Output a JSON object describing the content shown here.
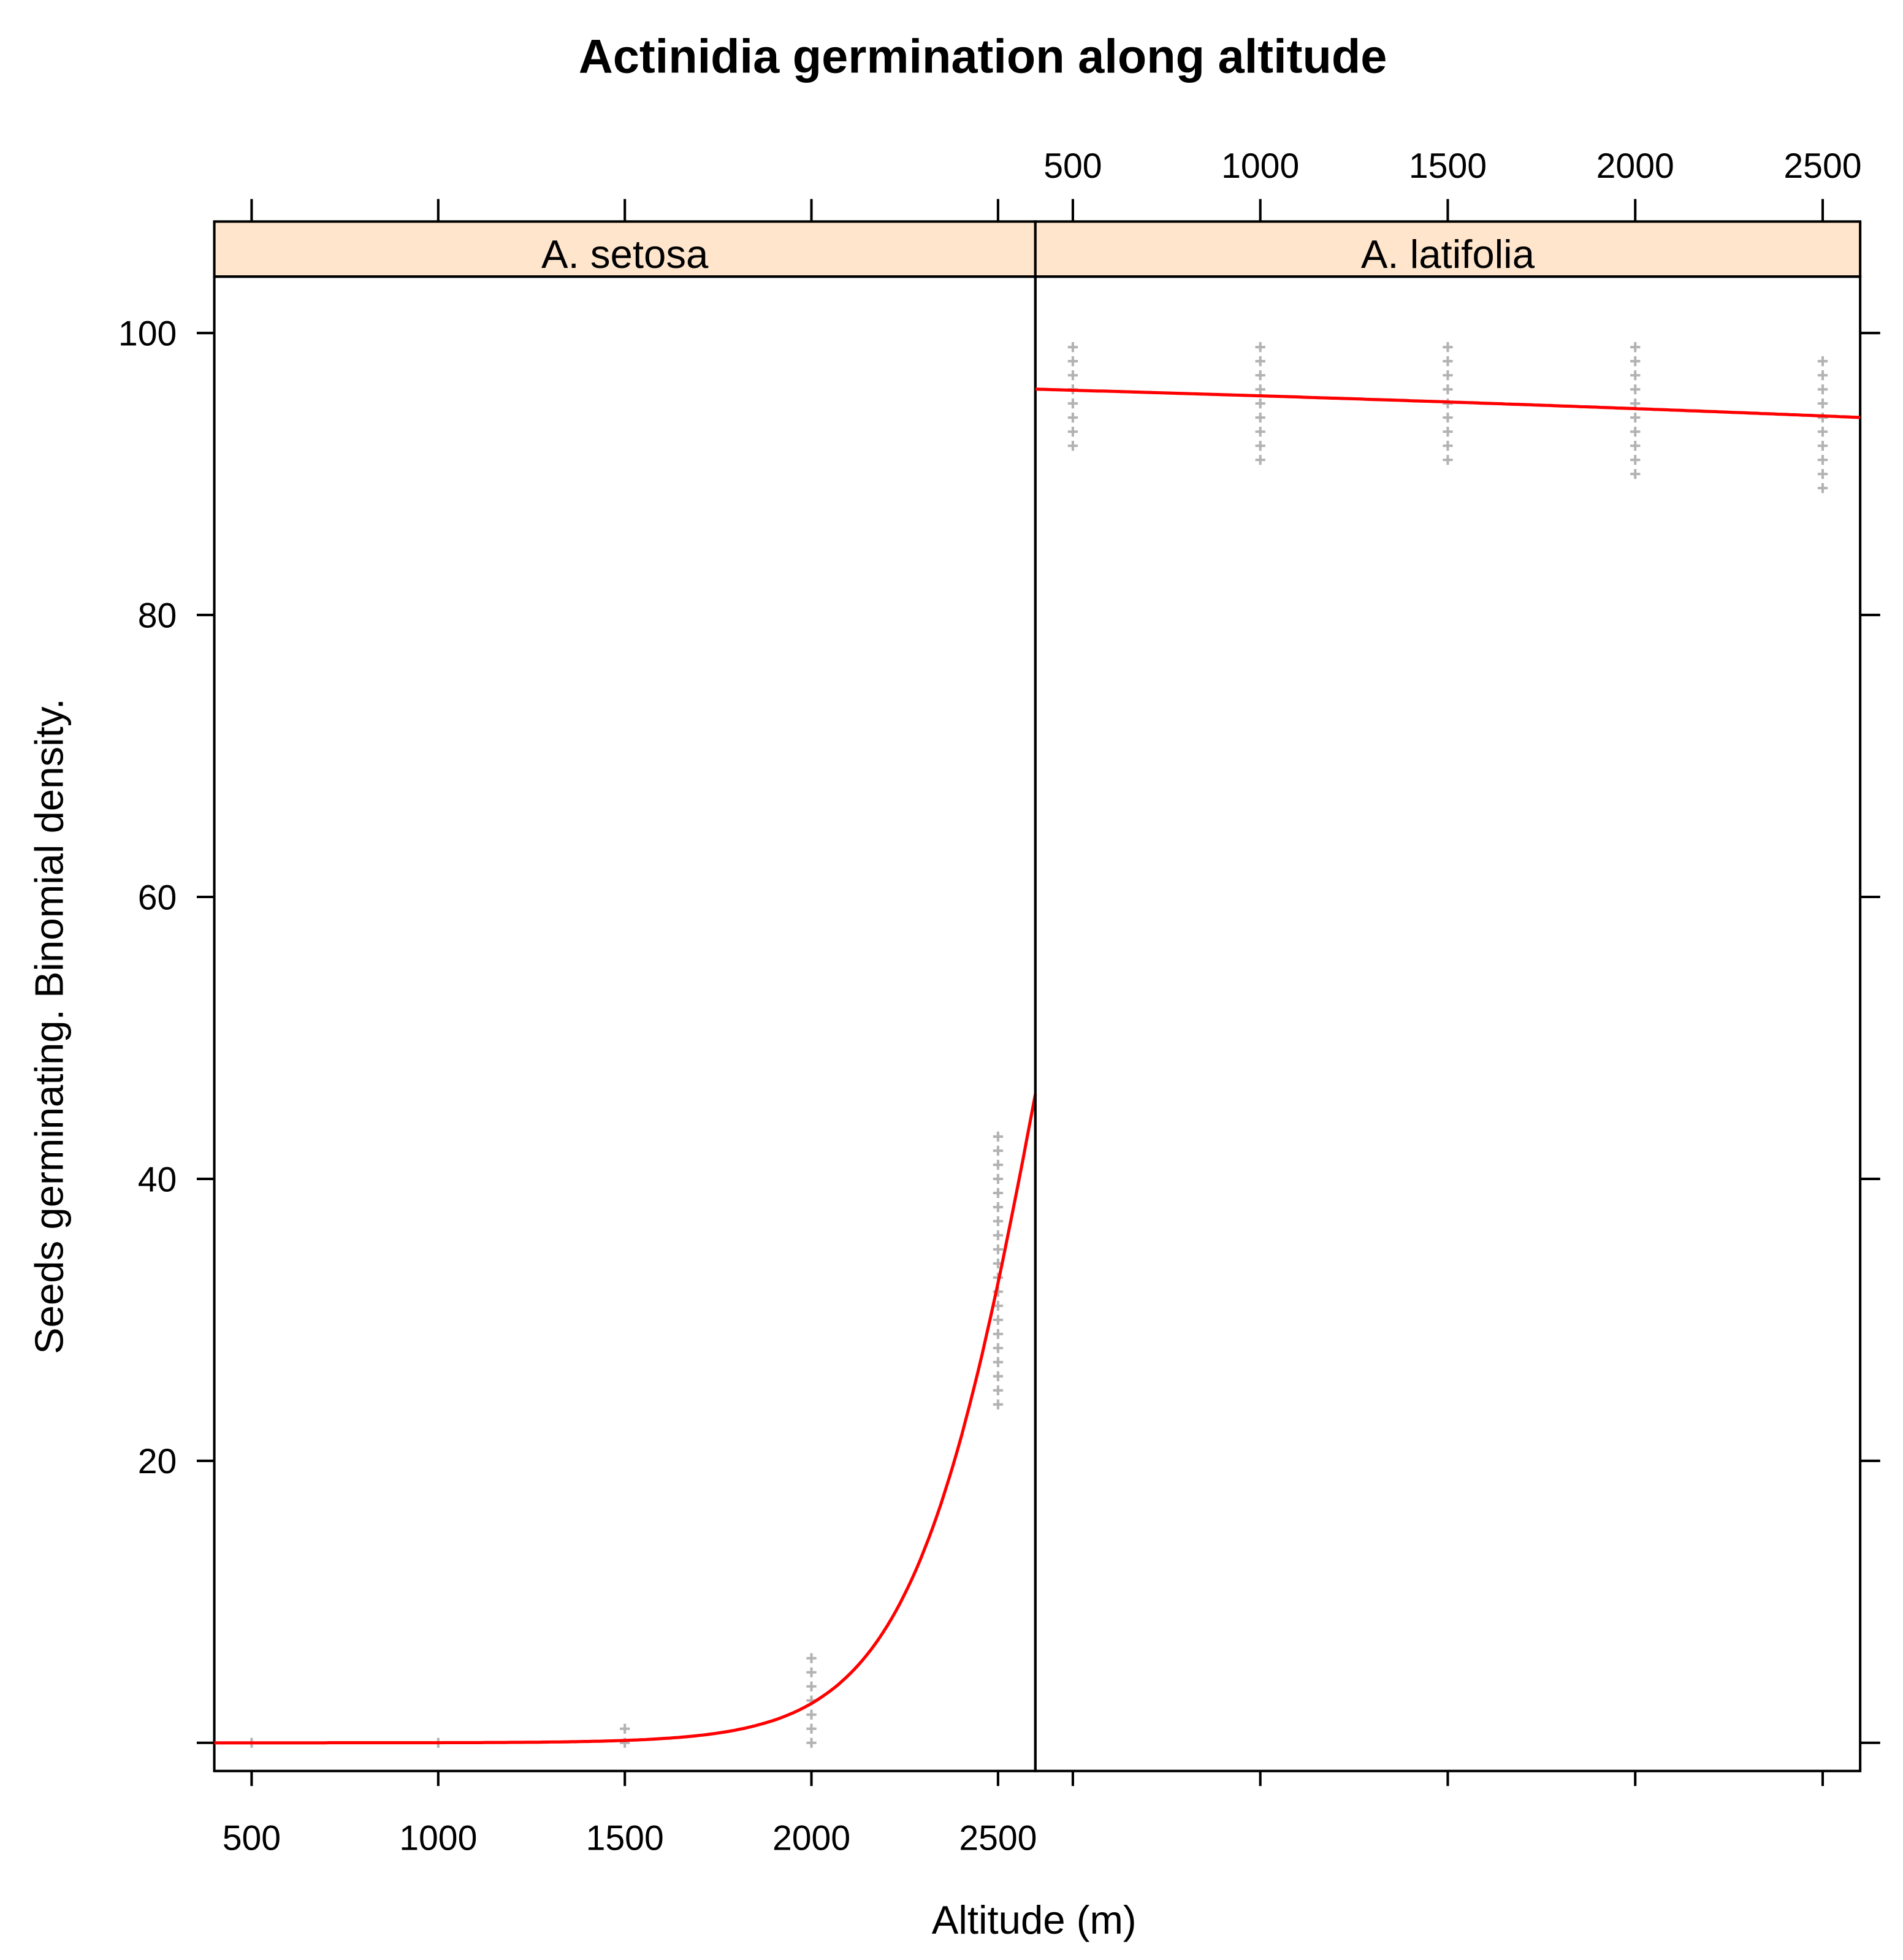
{
  "chart_data": {
    "type": "scatter",
    "title": "Actinidia germination along altitude",
    "xlabel": "Altitude (m)",
    "ylabel": "Seeds germinating.  Binomial density.",
    "xlim": [
      400,
      2600
    ],
    "ylim": [
      -2,
      104
    ],
    "x_ticks": [
      500,
      1000,
      1500,
      2000,
      2500
    ],
    "y_ticks": [
      0,
      20,
      40,
      60,
      80,
      100
    ],
    "grid": false,
    "point_color": "#b3b3b3",
    "fit_color": "#ff0000",
    "strip_color": "#ffe5cc",
    "panels": [
      {
        "label": "A. setosa",
        "points": [
          {
            "x": 500,
            "y": [
              0
            ]
          },
          {
            "x": 1000,
            "y": [
              0
            ]
          },
          {
            "x": 1500,
            "y": [
              0,
              1
            ]
          },
          {
            "x": 2000,
            "y": [
              0,
              1,
              2,
              3,
              4,
              5,
              6
            ]
          },
          {
            "x": 2500,
            "y": [
              24,
              25,
              26,
              27,
              28,
              29,
              30,
              31,
              32,
              33,
              34,
              35,
              36,
              37,
              38,
              39,
              40,
              41,
              42,
              43
            ]
          }
        ],
        "fit": {
          "logit_intercept": -14.85,
          "logit_slope": 0.00565,
          "scale": 100
        }
      },
      {
        "label": "A. latifolia",
        "points": [
          {
            "x": 500,
            "y": [
              92,
              93,
              94,
              95,
              96,
              97,
              98,
              99
            ]
          },
          {
            "x": 1000,
            "y": [
              91,
              92,
              93,
              94,
              95,
              96,
              97,
              98,
              99
            ]
          },
          {
            "x": 1500,
            "y": [
              91,
              92,
              93,
              94,
              95,
              96,
              97,
              98,
              99
            ]
          },
          {
            "x": 2000,
            "y": [
              90,
              91,
              92,
              93,
              94,
              95,
              96,
              97,
              98,
              99
            ]
          },
          {
            "x": 2500,
            "y": [
              89,
              90,
              91,
              92,
              93,
              94,
              95,
              96,
              97,
              98
            ]
          }
        ],
        "fit": {
          "logit_intercept": 3.26,
          "logit_slope": -0.000195,
          "scale": 100
        }
      }
    ]
  }
}
